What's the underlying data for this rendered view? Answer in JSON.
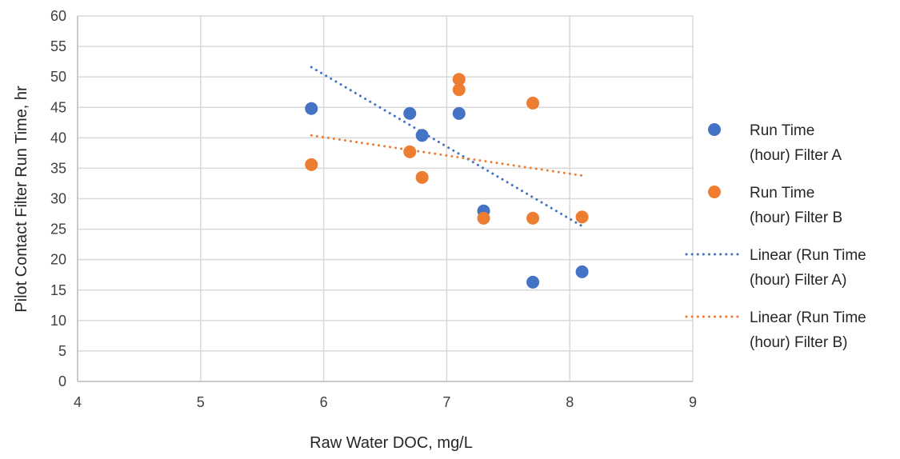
{
  "chart_data": {
    "type": "scatter",
    "title": "",
    "xlabel": "Raw Water DOC, mg/L",
    "ylabel": "Pilot Contact Filter Run Time, hr",
    "xlim": [
      4,
      9
    ],
    "ylim": [
      0,
      60
    ],
    "xticks": [
      4,
      5,
      6,
      7,
      8,
      9
    ],
    "yticks": [
      0,
      5,
      10,
      15,
      20,
      25,
      30,
      35,
      40,
      45,
      50,
      55,
      60
    ],
    "grid": true,
    "legend_position": "right",
    "series": [
      {
        "name": "Run Time (hour) Filter A",
        "legend_lines": [
          "Run Time",
          "(hour) Filter A"
        ],
        "color": "#4472C4",
        "kind": "scatter",
        "points": [
          {
            "x": 5.9,
            "y": 44.8
          },
          {
            "x": 6.7,
            "y": 44.0
          },
          {
            "x": 6.8,
            "y": 40.4
          },
          {
            "x": 7.1,
            "y": 44.0
          },
          {
            "x": 7.3,
            "y": 28.0
          },
          {
            "x": 7.7,
            "y": 16.3
          },
          {
            "x": 8.1,
            "y": 18.0
          }
        ]
      },
      {
        "name": "Run Time (hour) Filter B",
        "legend_lines": [
          "Run Time",
          "(hour) Filter B"
        ],
        "color": "#ED7D31",
        "kind": "scatter",
        "points": [
          {
            "x": 5.9,
            "y": 35.6
          },
          {
            "x": 6.7,
            "y": 37.7
          },
          {
            "x": 6.8,
            "y": 33.5
          },
          {
            "x": 7.1,
            "y": 49.6
          },
          {
            "x": 7.1,
            "y": 47.9
          },
          {
            "x": 7.3,
            "y": 26.8
          },
          {
            "x": 7.7,
            "y": 45.7
          },
          {
            "x": 7.7,
            "y": 26.8
          },
          {
            "x": 8.1,
            "y": 27.0
          }
        ]
      },
      {
        "name": "Linear (Run Time (hour) Filter A)",
        "legend_lines": [
          "Linear (Run Time",
          "(hour) Filter A)"
        ],
        "color": "#4472C4",
        "kind": "trendline",
        "points": [
          {
            "x": 5.9,
            "y": 51.6
          },
          {
            "x": 8.1,
            "y": 25.5
          }
        ]
      },
      {
        "name": "Linear (Run Time (hour) Filter B)",
        "legend_lines": [
          "Linear (Run Time",
          "(hour) Filter B)"
        ],
        "color": "#ED7D31",
        "kind": "trendline",
        "points": [
          {
            "x": 5.9,
            "y": 40.4
          },
          {
            "x": 8.1,
            "y": 33.8
          }
        ]
      }
    ]
  }
}
